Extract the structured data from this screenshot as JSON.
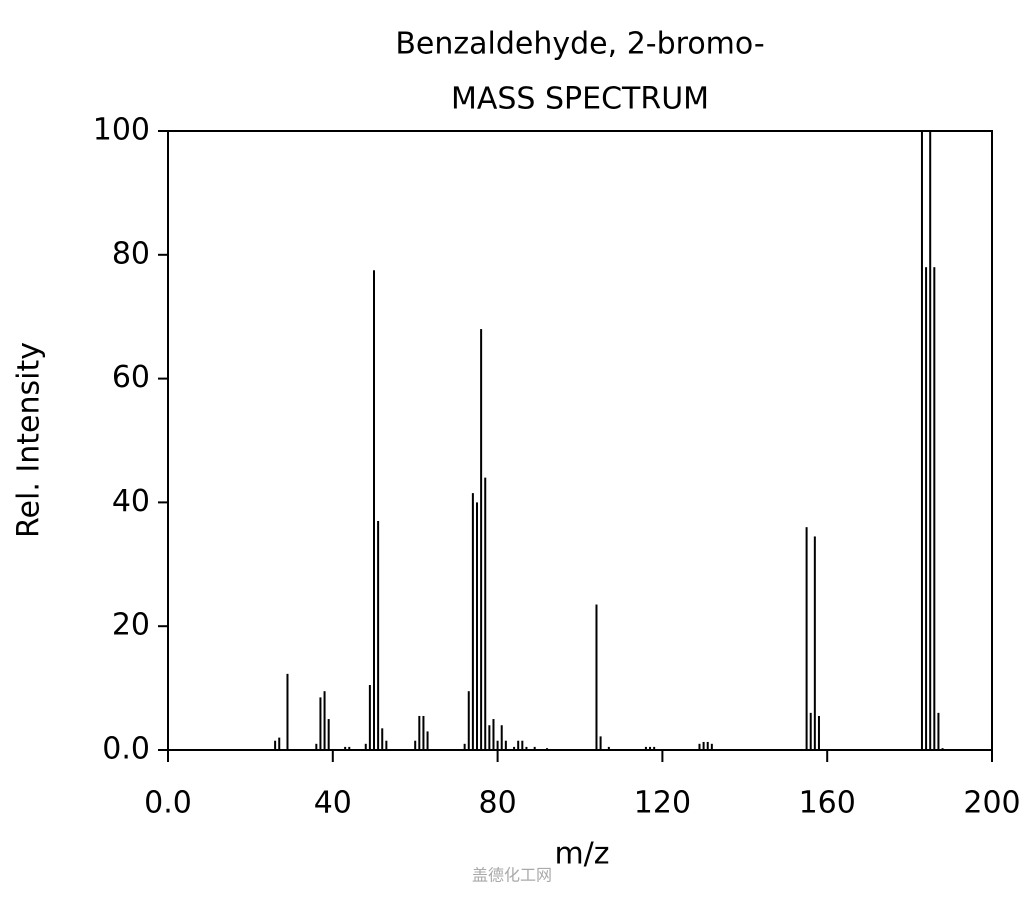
{
  "chart_data": {
    "type": "bar",
    "title": "Benzaldehyde, 2-bromo-",
    "subtitle": "MASS SPECTRUM",
    "x_label": "m/z",
    "y_label": "Rel. Intensity",
    "watermark": "盖德化工网",
    "color": "#000000",
    "x": [
      26,
      27,
      29,
      36,
      37,
      38,
      39,
      43,
      44,
      48,
      49,
      50,
      51,
      52,
      53,
      60,
      61,
      62,
      63,
      72,
      73,
      74,
      75,
      76,
      77,
      78,
      79,
      80,
      81,
      82,
      84,
      85,
      86,
      87,
      89,
      92,
      104,
      105,
      107,
      116,
      117,
      118,
      129,
      130,
      131,
      132,
      155,
      156,
      157,
      158,
      183,
      184,
      185,
      186,
      187,
      188
    ],
    "values": [
      1.5,
      2,
      12.3,
      1,
      8.5,
      9.5,
      5,
      0.5,
      0.5,
      1,
      10.5,
      77.5,
      37,
      3.5,
      1.5,
      1.5,
      5.5,
      5.5,
      3,
      1,
      9.5,
      41.5,
      40,
      68,
      44,
      4,
      5,
      1.5,
      4,
      1.5,
      0.5,
      1.5,
      1.5,
      0.5,
      0.5,
      0.3,
      23.5,
      2.2,
      0.5,
      0.5,
      0.5,
      0.5,
      1,
      1.3,
      1.3,
      1,
      36,
      6,
      34.5,
      5.5,
      100,
      78,
      100,
      78,
      6,
      0.3
    ],
    "xlim": [
      0,
      200
    ],
    "xticks": [
      {
        "value": 0,
        "label": "0.0"
      },
      40,
      80,
      120,
      160,
      200
    ],
    "ylim": [
      0,
      100
    ],
    "yticks": [
      {
        "value": 0,
        "label": "0.0"
      },
      20,
      40,
      60,
      80,
      100
    ],
    "grid": false
  }
}
